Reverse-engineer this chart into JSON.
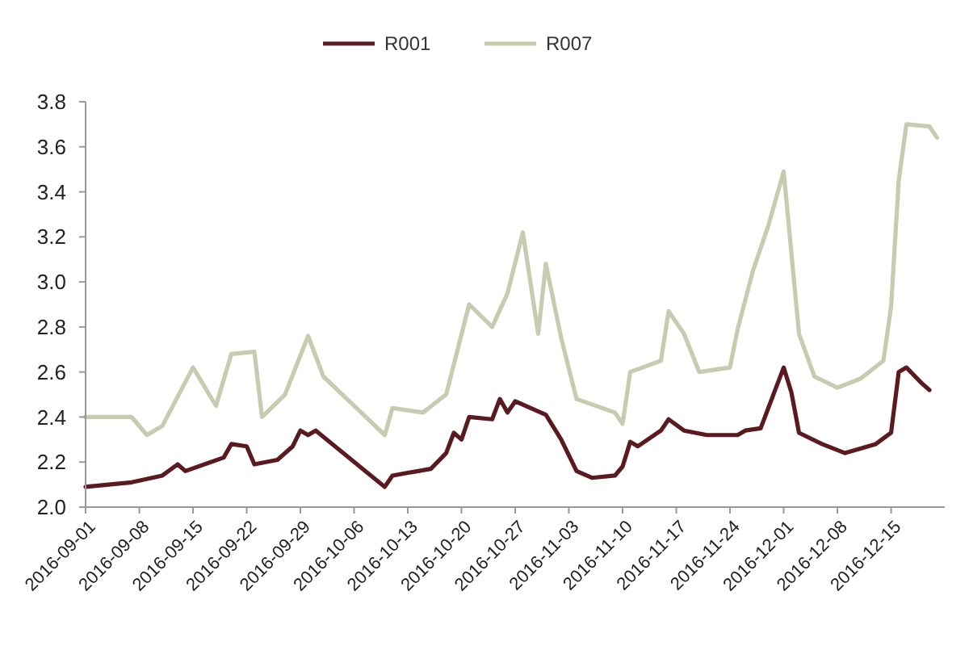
{
  "chart_data": {
    "type": "line",
    "legend": "top",
    "xlim": [
      "2016-09-01",
      "2016-12-22"
    ],
    "ylim": [
      2.0,
      3.8
    ],
    "yticks": [
      {
        "value": 2,
        "label": "2.0"
      },
      2.2,
      2.4,
      2.6,
      2.8,
      {
        "value": 3,
        "label": "3.0"
      },
      3.2,
      3.4,
      3.6,
      3.8
    ],
    "xticks": [
      {
        "value": "2016-09-01",
        "label": "2016-09-01"
      },
      {
        "value": "2016-09-08",
        "label": "2016-09-08"
      },
      {
        "value": "2016-09-15",
        "label": "2016-09-15"
      },
      {
        "value": "2016-09-22",
        "label": "2016-09-22"
      },
      {
        "value": "2016-09-29",
        "label": "2016-09-29"
      },
      {
        "value": "2016-10-06",
        "label": "2016-10-06"
      },
      {
        "value": "2016-10-13",
        "label": "2016-10-13"
      },
      {
        "value": "2016-10-20",
        "label": "2016-10-20"
      },
      {
        "value": "2016-10-27",
        "label": "2016-10-27"
      },
      {
        "value": "2016-11-03",
        "label": "2016-11-03"
      },
      {
        "value": "2016-11-10",
        "label": "2016-11-10"
      },
      {
        "value": "2016-11-17",
        "label": "2016-11-17"
      },
      {
        "value": "2016-11-24",
        "label": "2016-11-24"
      },
      {
        "value": "2016-12-01",
        "label": "2016-12-01"
      },
      {
        "value": "2016-12-08",
        "label": "2016-12-08"
      },
      {
        "value": "2016-12-15",
        "label": "2016-12-15"
      }
    ],
    "series": [
      {
        "name": "R001",
        "color": "#5a1a1f",
        "x": [
          "2016-09-01",
          "2016-09-07",
          "2016-09-11",
          "2016-09-13",
          "2016-09-14",
          "2016-09-19",
          "2016-09-20",
          "2016-09-22",
          "2016-09-23",
          "2016-09-26",
          "2016-09-28",
          "2016-09-29",
          "2016-09-30",
          "2016-10-01",
          "2016-10-10",
          "2016-10-11",
          "2016-10-16",
          "2016-10-18",
          "2016-10-19",
          "2016-10-20",
          "2016-10-21",
          "2016-10-24",
          "2016-10-25",
          "2016-10-26",
          "2016-10-27",
          "2016-10-31",
          "2016-11-02",
          "2016-11-04",
          "2016-11-06",
          "2016-11-09",
          "2016-11-10",
          "2016-11-11",
          "2016-11-12",
          "2016-11-15",
          "2016-11-16",
          "2016-11-18",
          "2016-11-21",
          "2016-11-25",
          "2016-11-26",
          "2016-11-28",
          "2016-11-30",
          "2016-12-01",
          "2016-12-02",
          "2016-12-03",
          "2016-12-06",
          "2016-12-09",
          "2016-12-13",
          "2016-12-15",
          "2016-12-16",
          "2016-12-17",
          "2016-12-19",
          "2016-12-20"
        ],
        "values": [
          2.09,
          2.11,
          2.14,
          2.19,
          2.16,
          2.22,
          2.28,
          2.27,
          2.19,
          2.21,
          2.27,
          2.34,
          2.32,
          2.34,
          2.09,
          2.14,
          2.17,
          2.24,
          2.33,
          2.3,
          2.4,
          2.39,
          2.48,
          2.42,
          2.47,
          2.41,
          2.3,
          2.16,
          2.13,
          2.14,
          2.18,
          2.29,
          2.27,
          2.34,
          2.39,
          2.34,
          2.32,
          2.32,
          2.34,
          2.35,
          2.53,
          2.62,
          2.51,
          2.33,
          2.28,
          2.24,
          2.28,
          2.33,
          2.6,
          2.62,
          2.55,
          2.52
        ]
      },
      {
        "name": "R007",
        "color": "#c8cbb0",
        "x": [
          "2016-09-01",
          "2016-09-07",
          "2016-09-09",
          "2016-09-11",
          "2016-09-15",
          "2016-09-18",
          "2016-09-20",
          "2016-09-23",
          "2016-09-24",
          "2016-09-27",
          "2016-09-30",
          "2016-10-02",
          "2016-10-10",
          "2016-10-11",
          "2016-10-15",
          "2016-10-18",
          "2016-10-21",
          "2016-10-24",
          "2016-10-26",
          "2016-10-28",
          "2016-10-30",
          "2016-10-31",
          "2016-11-02",
          "2016-11-04",
          "2016-11-09",
          "2016-11-10",
          "2016-11-11",
          "2016-11-15",
          "2016-11-16",
          "2016-11-18",
          "2016-11-20",
          "2016-11-24",
          "2016-11-25",
          "2016-11-27",
          "2016-11-29",
          "2016-12-01",
          "2016-12-03",
          "2016-12-05",
          "2016-12-08",
          "2016-12-11",
          "2016-12-14",
          "2016-12-15",
          "2016-12-16",
          "2016-12-17",
          "2016-12-20",
          "2016-12-21"
        ],
        "values": [
          2.4,
          2.4,
          2.32,
          2.36,
          2.62,
          2.45,
          2.68,
          2.69,
          2.4,
          2.5,
          2.76,
          2.58,
          2.32,
          2.44,
          2.42,
          2.5,
          2.9,
          2.8,
          2.95,
          3.22,
          2.77,
          3.08,
          2.75,
          2.48,
          2.42,
          2.37,
          2.6,
          2.65,
          2.87,
          2.77,
          2.6,
          2.62,
          2.79,
          3.05,
          3.25,
          3.49,
          2.77,
          2.58,
          2.53,
          2.57,
          2.65,
          2.89,
          3.45,
          3.7,
          3.69,
          3.64
        ]
      }
    ]
  }
}
